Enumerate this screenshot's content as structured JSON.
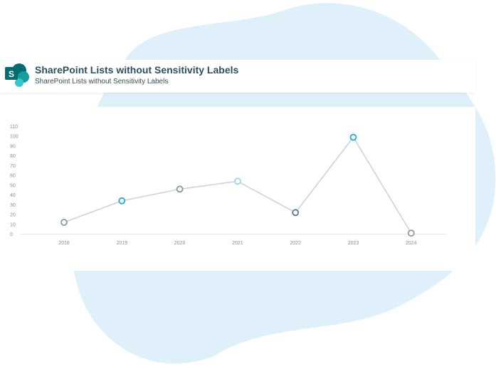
{
  "header": {
    "title": "SharePoint Lists without Sensitivity Labels",
    "subtitle": "SharePoint Lists without Sensitivity Labels",
    "logo_letter": "S",
    "logo_icon": "sharepoint-logo-icon"
  },
  "colors": {
    "blob": "#dff0fb",
    "line": "#cfd3d6",
    "gridline": "#e6e8ea",
    "marker_teal": "#2ea6cc",
    "marker_gray": "#8a98a2",
    "marker_light": "#9fd3ea",
    "marker_dark": "#607787",
    "logo_dark": "#036c70",
    "logo_mid": "#1a9ba1",
    "logo_light": "#37c6d0"
  },
  "chart_data": {
    "type": "line",
    "x": [
      "2018",
      "2019",
      "2020",
      "2021",
      "2022",
      "2023",
      "2024"
    ],
    "series": [
      {
        "values": [
          12,
          34,
          46,
          54,
          22,
          99,
          1
        ],
        "marker_colors": [
          "#8a98a2",
          "#2ea6cc",
          "#8a98a2",
          "#9fd3ea",
          "#607787",
          "#2ea6cc",
          "#8a98a2"
        ]
      }
    ],
    "y_ticks": [
      0,
      10,
      20,
      30,
      40,
      50,
      60,
      70,
      80,
      90,
      100,
      110
    ],
    "ylim": [
      0,
      110
    ],
    "title": "",
    "xlabel": "",
    "ylabel": "",
    "grid": false,
    "legend": "none"
  }
}
